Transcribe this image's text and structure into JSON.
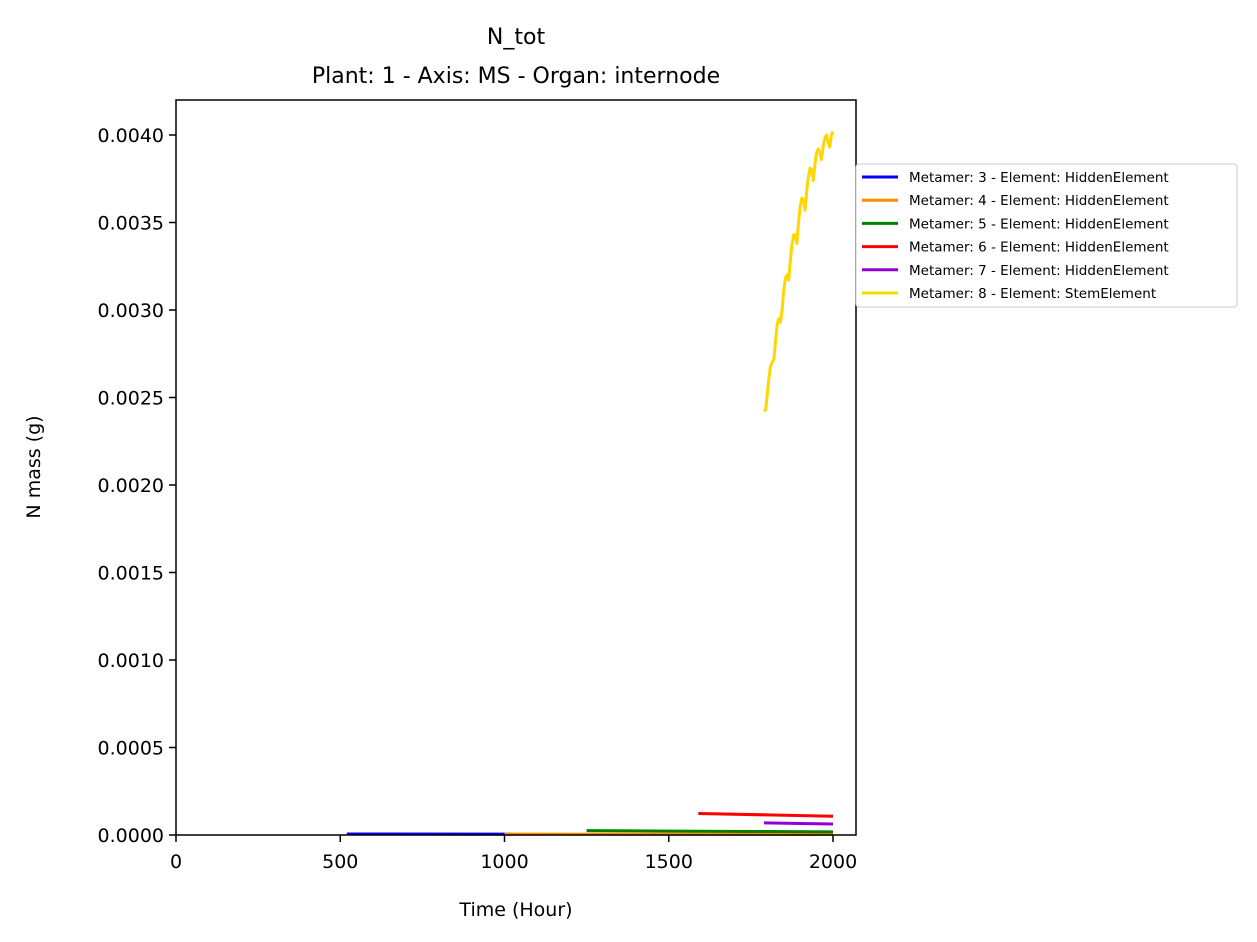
{
  "chart_data": {
    "type": "line",
    "title": "N_tot",
    "subtitle": "Plant: 1 - Axis: MS - Organ: internode",
    "xlabel": "Time (Hour)",
    "ylabel": "N mass (g)",
    "xlim": [
      0,
      2070
    ],
    "ylim": [
      0,
      0.0042
    ],
    "xticks": [
      0,
      500,
      1000,
      1500,
      2000
    ],
    "xtick_labels": [
      "0",
      "500",
      "1000",
      "1500",
      "2000"
    ],
    "yticks": [
      0,
      0.0005,
      0.001,
      0.0015,
      0.002,
      0.0025,
      0.003,
      0.0035,
      0.004
    ],
    "ytick_labels": [
      "0.0000",
      "0.0005",
      "0.0010",
      "0.0015",
      "0.0020",
      "0.0025",
      "0.0030",
      "0.0035",
      "0.0040"
    ],
    "grid": false,
    "legend_position": "outside-right",
    "series": [
      {
        "name": "Metamer: 3 - Element: HiddenElement",
        "color": "#0000ff",
        "points": [
          [
            520,
            6e-06
          ],
          [
            1000,
            5e-06
          ],
          [
            1020,
            5e-06
          ]
        ]
      },
      {
        "name": "Metamer: 4 - Element: HiddenElement",
        "color": "#ff8c00",
        "points": [
          [
            1000,
            5e-06
          ],
          [
            1500,
            4e-06
          ],
          [
            2000,
            3e-06
          ]
        ]
      },
      {
        "name": "Metamer: 5 - Element: HiddenElement",
        "color": "#008000",
        "points": [
          [
            1250,
            2.5e-05
          ],
          [
            1500,
            2.2e-05
          ],
          [
            1750,
            2e-05
          ],
          [
            2000,
            1.8e-05
          ]
        ]
      },
      {
        "name": "Metamer: 6 - Element: HiddenElement",
        "color": "#ff0000",
        "points": [
          [
            1590,
            0.000123
          ],
          [
            1800,
            0.000115
          ],
          [
            2000,
            0.000107
          ]
        ]
      },
      {
        "name": "Metamer: 7 - Element: HiddenElement",
        "color": "#9400d3",
        "points": [
          [
            1790,
            6.9e-05
          ],
          [
            1900,
            6.6e-05
          ],
          [
            2000,
            6.3e-05
          ]
        ]
      },
      {
        "name": "Metamer: 8 - Element: StemElement",
        "color": "#ffd700",
        "points": [
          [
            1790,
            0.00242
          ],
          [
            1795,
            0.00243
          ],
          [
            1800,
            0.00252
          ],
          [
            1805,
            0.00261
          ],
          [
            1810,
            0.00268
          ],
          [
            1815,
            0.0027
          ],
          [
            1820,
            0.00272
          ],
          [
            1825,
            0.00282
          ],
          [
            1830,
            0.00292
          ],
          [
            1835,
            0.00295
          ],
          [
            1840,
            0.00293
          ],
          [
            1845,
            0.003
          ],
          [
            1850,
            0.00311
          ],
          [
            1855,
            0.00318
          ],
          [
            1860,
            0.0032
          ],
          [
            1865,
            0.00317
          ],
          [
            1870,
            0.00328
          ],
          [
            1875,
            0.00337
          ],
          [
            1880,
            0.00343
          ],
          [
            1885,
            0.00343
          ],
          [
            1890,
            0.00338
          ],
          [
            1895,
            0.0035
          ],
          [
            1900,
            0.00359
          ],
          [
            1905,
            0.00364
          ],
          [
            1910,
            0.00363
          ],
          [
            1915,
            0.00357
          ],
          [
            1920,
            0.00368
          ],
          [
            1925,
            0.00376
          ],
          [
            1930,
            0.00381
          ],
          [
            1935,
            0.0038
          ],
          [
            1940,
            0.00374
          ],
          [
            1945,
            0.00383
          ],
          [
            1950,
            0.0039
          ],
          [
            1955,
            0.00392
          ],
          [
            1960,
            0.0039
          ],
          [
            1965,
            0.00386
          ],
          [
            1970,
            0.00393
          ],
          [
            1975,
            0.00398
          ],
          [
            1980,
            0.004
          ],
          [
            1985,
            0.00396
          ],
          [
            1990,
            0.00393
          ],
          [
            1995,
            0.004
          ],
          [
            2000,
            0.00402
          ]
        ]
      }
    ]
  }
}
